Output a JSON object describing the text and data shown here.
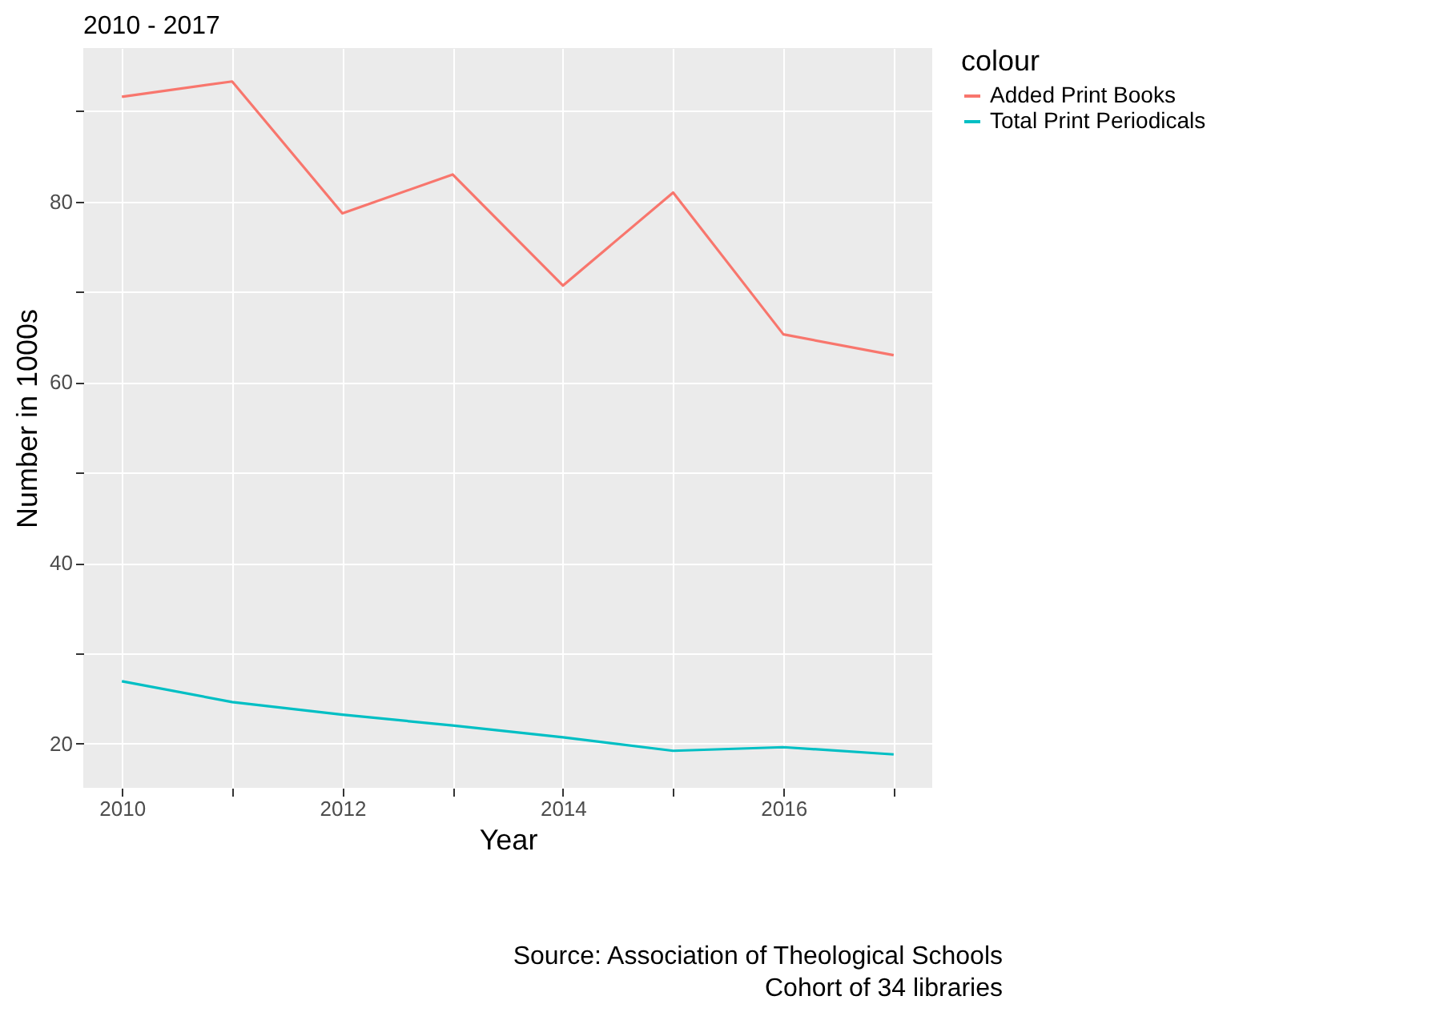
{
  "chart_data": {
    "type": "line",
    "title": "2010 - 2017",
    "xlabel": "Year",
    "ylabel": "Number in 1000s",
    "legend_title": "colour",
    "legend": "right",
    "grid": true,
    "x": [
      2010,
      2011,
      2012,
      2013,
      2014,
      2015,
      2016,
      2017
    ],
    "xlim": [
      2009.65,
      2017.35
    ],
    "ylim": [
      15.1,
      97
    ],
    "xticks": [
      2010,
      {
        "value": 2011,
        "label": null
      },
      2012,
      {
        "value": 2013,
        "label": null
      },
      2014,
      {
        "value": 2015,
        "label": null
      },
      2016,
      {
        "value": 2017,
        "label": null
      }
    ],
    "yticks": [
      20,
      {
        "value": 30,
        "label": null
      },
      40,
      {
        "value": 50,
        "label": null
      },
      60,
      {
        "value": 70,
        "label": null
      },
      80,
      {
        "value": 90,
        "label": null
      }
    ],
    "series": [
      {
        "name": "Added Print Books",
        "color": "#f8766d",
        "values": [
          91.6,
          93.3,
          78.7,
          83.0,
          70.7,
          81.0,
          65.3,
          63.0
        ]
      },
      {
        "name": "Total Print Periodicals",
        "color": "#00bfc4",
        "values": [
          26.9,
          24.6,
          23.2,
          22.0,
          20.7,
          19.2,
          19.6,
          18.8
        ]
      }
    ],
    "annotations": [
      "Source: Association of Theological Schools",
      "Cohort of 34 libraries"
    ]
  }
}
